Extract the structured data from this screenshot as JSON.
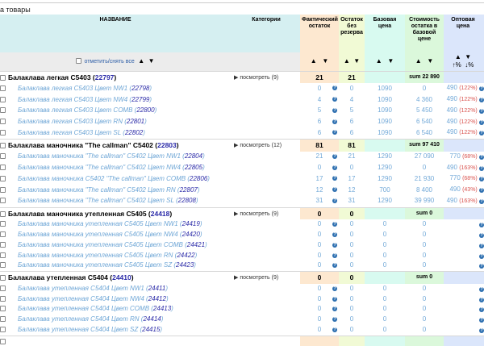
{
  "page_title_fragment": "а товары",
  "headers": {
    "name": "НАЗВАНИЕ",
    "categories": "Категории",
    "fact": "Фактический остаток",
    "ost": "Остаток без резерва",
    "base": "Базовая цена",
    "cost": "Стоимость остатка в базовой цене",
    "opt": "Оптовая цена"
  },
  "sort": {
    "select_all": "отметить/снять все",
    "asc": "▲",
    "desc": "▼",
    "pct_up": "↑%",
    "pct_down": "↓%"
  },
  "colors": {
    "child_text": "#6ea6d6",
    "id": "#2a2aa8",
    "percent": "#d9534f"
  },
  "groups": [
    {
      "name": "Балаклава легкая C5403",
      "id": "22797",
      "cat": "▶ посмотреть (9)",
      "fact": "21",
      "ost": "21",
      "cost": "sum 22 890",
      "items": [
        {
          "name": "Балаклава легкая C5403 Цвет NW1",
          "id": "22798",
          "fact": "0",
          "ost": "0",
          "base": "1090",
          "cost": "0",
          "opt": "490",
          "pct": "(122%)"
        },
        {
          "name": "Балаклава легкая C5403 Цвет NW4",
          "id": "22799",
          "fact": "4",
          "ost": "4",
          "base": "1090",
          "cost": "4 360",
          "opt": "490",
          "pct": "(122%)"
        },
        {
          "name": "Балаклава легкая C5403 Цвет COMB",
          "id": "22800",
          "fact": "5",
          "ost": "5",
          "base": "1090",
          "cost": "5 450",
          "opt": "490",
          "pct": "(122%)"
        },
        {
          "name": "Балаклава легкая C5403 Цвет RN",
          "id": "22801",
          "fact": "6",
          "ost": "6",
          "base": "1090",
          "cost": "6 540",
          "opt": "490",
          "pct": "(122%)"
        },
        {
          "name": "Балаклава легкая C5403 Цвет SL",
          "id": "22802",
          "fact": "6",
          "ost": "6",
          "base": "1090",
          "cost": "6 540",
          "opt": "490",
          "pct": "(122%)"
        }
      ]
    },
    {
      "name": "Балаклава маночника \"The callman\" C5402",
      "id": "22803",
      "cat": "▶ посмотреть (12)",
      "fact": "81",
      "ost": "81",
      "cost": "sum 97 410",
      "items": [
        {
          "name": "Балаклава маночника \"The callman\" C5402 Цвет NW1",
          "id": "22804",
          "fact": "21",
          "ost": "21",
          "base": "1290",
          "cost": "27 090",
          "opt": "770",
          "pct": "(68%)"
        },
        {
          "name": "Балаклава маночника \"The callman\" C5402 Цвет NW4",
          "id": "22805",
          "fact": "0",
          "ost": "0",
          "base": "1290",
          "cost": "0",
          "opt": "490",
          "pct": "(163%)"
        },
        {
          "name": "Балаклава маночника C5402 \"The callman\" Цвет COMB",
          "id": "22806",
          "fact": "17",
          "ost": "17",
          "base": "1290",
          "cost": "21 930",
          "opt": "770",
          "pct": "(68%)"
        },
        {
          "name": "Балаклава маночника \"The callman\" C5402 Цвет RN",
          "id": "22807",
          "fact": "12",
          "ost": "12",
          "base": "700",
          "cost": "8 400",
          "opt": "490",
          "pct": "(43%)"
        },
        {
          "name": "Балаклава маночника \"The callman\" C5402 Цвет SL",
          "id": "22808",
          "fact": "31",
          "ost": "31",
          "base": "1290",
          "cost": "39 990",
          "opt": "490",
          "pct": "(163%)"
        }
      ]
    },
    {
      "name": "Балаклава маночника утепленная C5405",
      "id": "24418",
      "cat": "▶ посмотреть (9)",
      "fact": "0",
      "ost": "0",
      "cost": "sum 0",
      "items": [
        {
          "name": "Балаклава маночника утепленная C5405 Цвет NW1",
          "id": "24419",
          "fact": "0",
          "ost": "0",
          "base": "0",
          "cost": "0",
          "opt": "",
          "pct": ""
        },
        {
          "name": "Балаклава маночника утепленная C5405 Цвет NW4",
          "id": "24420",
          "fact": "0",
          "ost": "0",
          "base": "0",
          "cost": "0",
          "opt": "",
          "pct": ""
        },
        {
          "name": "Балаклава маночника утепленная C5405 Цвет COMB",
          "id": "24421",
          "fact": "0",
          "ost": "0",
          "base": "0",
          "cost": "0",
          "opt": "",
          "pct": ""
        },
        {
          "name": "Балаклава маночника утепленная C5405 Цвет RN",
          "id": "24422",
          "fact": "0",
          "ost": "0",
          "base": "0",
          "cost": "0",
          "opt": "",
          "pct": ""
        },
        {
          "name": "Балаклава маночника утепленная C5405 Цвет SZ",
          "id": "24423",
          "fact": "0",
          "ost": "0",
          "base": "0",
          "cost": "0",
          "opt": "",
          "pct": ""
        }
      ]
    },
    {
      "name": "Балаклава утепленная C5404",
      "id": "24410",
      "cat": "▶ посмотреть (9)",
      "fact": "0",
      "ost": "0",
      "cost": "sum 0",
      "items": [
        {
          "name": "Балаклава утепленная C5404 Цвет NW1",
          "id": "24411",
          "fact": "0",
          "ost": "0",
          "base": "0",
          "cost": "0",
          "opt": "",
          "pct": ""
        },
        {
          "name": "Балаклава утепленная C5404 Цвет NW4",
          "id": "24412",
          "fact": "0",
          "ost": "0",
          "base": "0",
          "cost": "0",
          "opt": "",
          "pct": ""
        },
        {
          "name": "Балаклава утепленная C5404 Цвет COMB",
          "id": "24413",
          "fact": "0",
          "ost": "0",
          "base": "0",
          "cost": "0",
          "opt": "",
          "pct": ""
        },
        {
          "name": "Балаклава утепленная C5404 Цвет RN",
          "id": "24414",
          "fact": "0",
          "ost": "0",
          "base": "0",
          "cost": "0",
          "opt": "",
          "pct": ""
        },
        {
          "name": "Балаклава утепленная C5404 Цвет SZ",
          "id": "24415",
          "fact": "0",
          "ost": "0",
          "base": "0",
          "cost": "0",
          "opt": "",
          "pct": ""
        }
      ]
    }
  ]
}
